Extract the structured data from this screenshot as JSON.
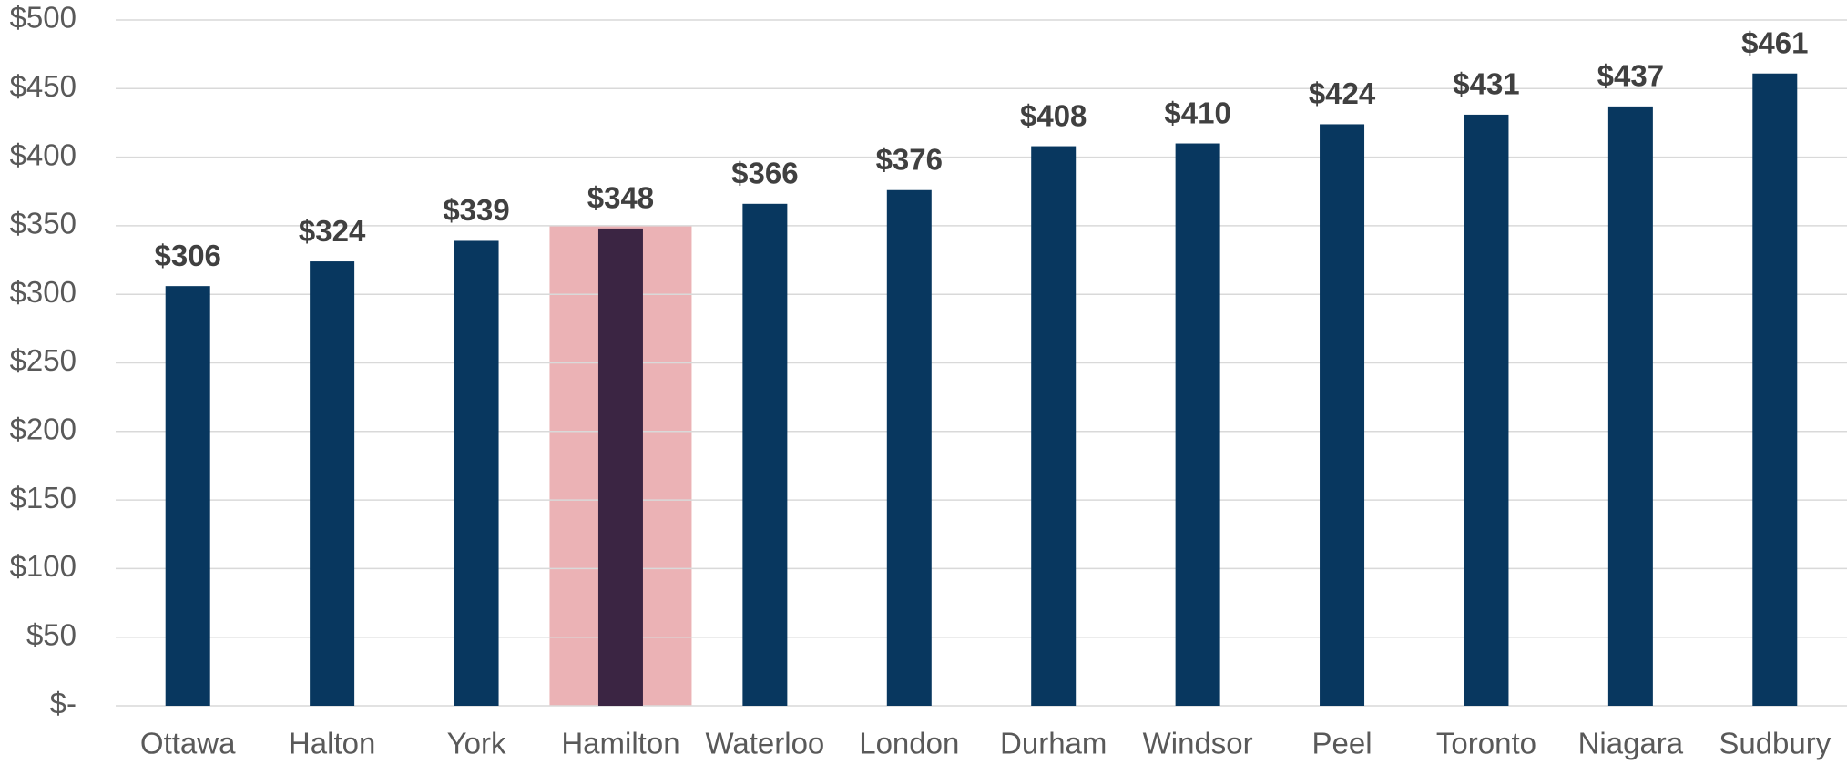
{
  "chart_data": {
    "type": "bar",
    "categories": [
      "Ottawa",
      "Halton",
      "York",
      "Hamilton",
      "Waterloo",
      "London",
      "Durham",
      "Windsor",
      "Peel",
      "Toronto",
      "Niagara",
      "Sudbury"
    ],
    "values": [
      306,
      324,
      339,
      348,
      366,
      376,
      408,
      410,
      424,
      431,
      437,
      461
    ],
    "value_labels": [
      "$306",
      "$324",
      "$339",
      "$348",
      "$366",
      "$376",
      "$408",
      "$410",
      "$424",
      "$431",
      "$437",
      "$461"
    ],
    "color": "#08375f",
    "highlight": {
      "category": "Hamilton",
      "color": "#ebb2b5",
      "bar_color": "#3b2543",
      "top": 350
    },
    "ylim": [
      0,
      500
    ],
    "yticks": [
      {
        "value": 0,
        "label": "$-"
      },
      {
        "value": 50,
        "label": "$50"
      },
      {
        "value": 100,
        "label": "$100"
      },
      {
        "value": 150,
        "label": "$150"
      },
      {
        "value": 200,
        "label": "$200"
      },
      {
        "value": 250,
        "label": "$250"
      },
      {
        "value": 300,
        "label": "$300"
      },
      {
        "value": 350,
        "label": "$350"
      },
      {
        "value": 400,
        "label": "$400"
      },
      {
        "value": 450,
        "label": "$450"
      },
      {
        "value": 500,
        "label": "$500"
      }
    ],
    "grid": true
  }
}
